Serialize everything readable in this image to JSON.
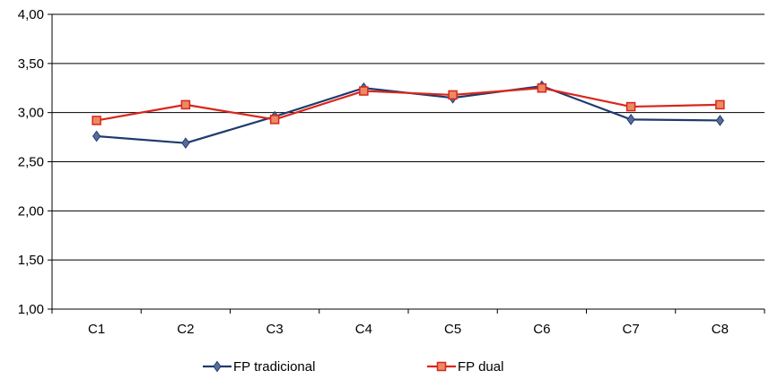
{
  "chart_data": {
    "type": "line",
    "categories": [
      "C1",
      "C2",
      "C3",
      "C4",
      "C5",
      "C6",
      "C7",
      "C8"
    ],
    "series": [
      {
        "name": "FP tradicional",
        "color": "#1f3a6e",
        "marker": "diamond",
        "values": [
          2.76,
          2.69,
          2.96,
          3.25,
          3.15,
          3.27,
          2.93,
          2.92
        ]
      },
      {
        "name": "FP dual",
        "color": "#d9261c",
        "marker": "square",
        "values": [
          2.92,
          3.08,
          2.93,
          3.22,
          3.18,
          3.25,
          3.06,
          3.08
        ]
      }
    ],
    "yticks": [
      "1,00",
      "1,50",
      "2,00",
      "2,50",
      "3,00",
      "3,50",
      "4,00"
    ],
    "ylim": [
      1.0,
      4.0
    ],
    "grid": true,
    "legend_position": "bottom"
  }
}
